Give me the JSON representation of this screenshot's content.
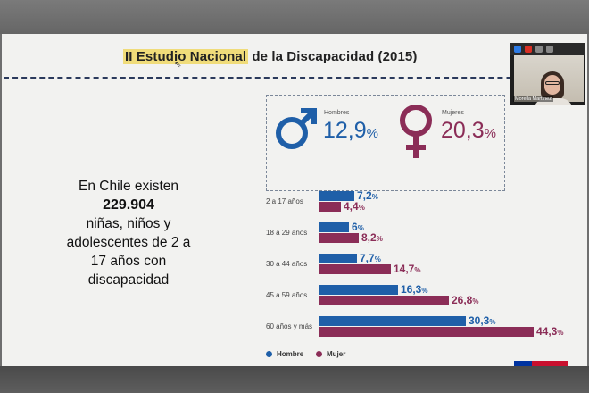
{
  "slide": {
    "title_highlight": "II Estudio Nacional",
    "title_rest": " de la Discapacidad (2015)"
  },
  "summary": {
    "male": {
      "label": "Hombres",
      "value": "12,9",
      "unit": "%",
      "icon": "male-symbol-icon",
      "color": "#1f5fa8"
    },
    "female": {
      "label": "Mujeres",
      "value": "20,3",
      "unit": "%",
      "icon": "female-symbol-icon",
      "color": "#8b2d57"
    }
  },
  "text_block": {
    "line1": "En Chile existen",
    "number": "229.904",
    "line3": "niñas, niños y",
    "line4": "adolescentes de 2 a",
    "line5": "17  años con",
    "line6": "discapacidad"
  },
  "chart_data": {
    "type": "bar",
    "orientation": "horizontal",
    "categories": [
      "2 a 17 años",
      "18 a 29 años",
      "30 a 44 años",
      "45 a 59 años",
      "60 años y más"
    ],
    "series": [
      {
        "name": "Hombre",
        "color": "#1f5fa8",
        "values": [
          7.2,
          6,
          7.7,
          16.3,
          30.3
        ],
        "labels": [
          "7,2",
          "6",
          "7,7",
          "16,3",
          "30,3"
        ]
      },
      {
        "name": "Mujer",
        "color": "#8b2d57",
        "values": [
          4.4,
          8.2,
          14.7,
          26.8,
          44.3
        ],
        "labels": [
          "4,4",
          "8,2",
          "14,7",
          "26,8",
          "44,3"
        ]
      }
    ],
    "unit": "%",
    "legend_position": "bottom-left"
  },
  "legend": {
    "male": "Hombre",
    "female": "Mujer"
  },
  "video_call": {
    "participant_name": "Morella Martínez"
  }
}
